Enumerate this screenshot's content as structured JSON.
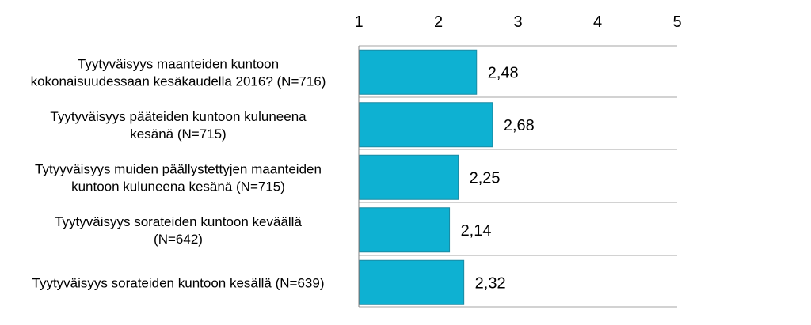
{
  "chart_data": {
    "type": "bar",
    "orientation": "horizontal",
    "categories": [
      [
        "Tyytyväisyys maanteiden kuntoon",
        "kokonaisuudessaan kesäkaudella 2016?  (N=716)"
      ],
      [
        "Tyytyväisyys pääteiden kuntoon kuluneena",
        "kesänä (N=715)"
      ],
      [
        "Tytyyväisyys muiden päällystettyjen maanteiden",
        "kuntoon kuluneena kesänä (N=715)"
      ],
      [
        "Tyytyväisyys sorateiden kuntoon keväällä",
        "(N=642)"
      ],
      [
        "Tyytyväisyys sorateiden kuntoon kesällä (N=639)"
      ]
    ],
    "values": [
      2.48,
      2.68,
      2.25,
      2.14,
      2.32
    ],
    "data_labels": [
      "2,48",
      "2,68",
      "2,25",
      "2,14",
      "2,32"
    ],
    "xlim": [
      1,
      5
    ],
    "x_ticks": [
      "1",
      "2",
      "3",
      "4",
      "5"
    ],
    "x_axis_position": "top",
    "bar_color": "#0EB1D2",
    "bar_edge_color": "#1A8AA3",
    "grid": "horizontal separators",
    "legend": "none"
  }
}
